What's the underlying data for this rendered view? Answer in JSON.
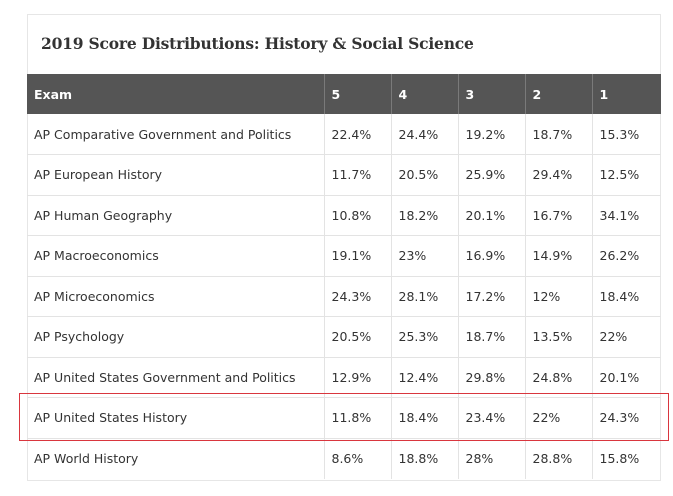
{
  "title": "2019 Score Distributions: History & Social Science",
  "headers": [
    "Exam",
    "5",
    "4",
    "3",
    "2",
    "1"
  ],
  "rows": [
    [
      "AP Comparative Government and Politics",
      "22.4%",
      "24.4%",
      "19.2%",
      "18.7%",
      "15.3%"
    ],
    [
      "AP European History",
      "11.7%",
      "20.5%",
      "25.9%",
      "29.4%",
      "12.5%"
    ],
    [
      "AP Human Geography",
      "10.8%",
      "18.2%",
      "20.1%",
      "16.7%",
      "34.1%"
    ],
    [
      "AP Macroeconomics",
      "19.1%",
      "23%",
      "16.9%",
      "14.9%",
      "26.2%"
    ],
    [
      "AP Microeconomics",
      "24.3%",
      "28.1%",
      "17.2%",
      "12%",
      "18.4%"
    ],
    [
      "AP Psychology",
      "20.5%",
      "25.3%",
      "18.7%",
      "13.5%",
      "22%"
    ],
    [
      "AP United States Government and Politics",
      "12.9%",
      "12.4%",
      "29.8%",
      "24.8%",
      "20.1%"
    ],
    [
      "AP United States History",
      "11.8%",
      "18.4%",
      "23.4%",
      "22%",
      "24.3%"
    ],
    [
      "AP World History",
      "8.6%",
      "18.8%",
      "28%",
      "28.8%",
      "15.8%"
    ]
  ],
  "highlight_color": "#d9363e",
  "header_bg": "#555555"
}
